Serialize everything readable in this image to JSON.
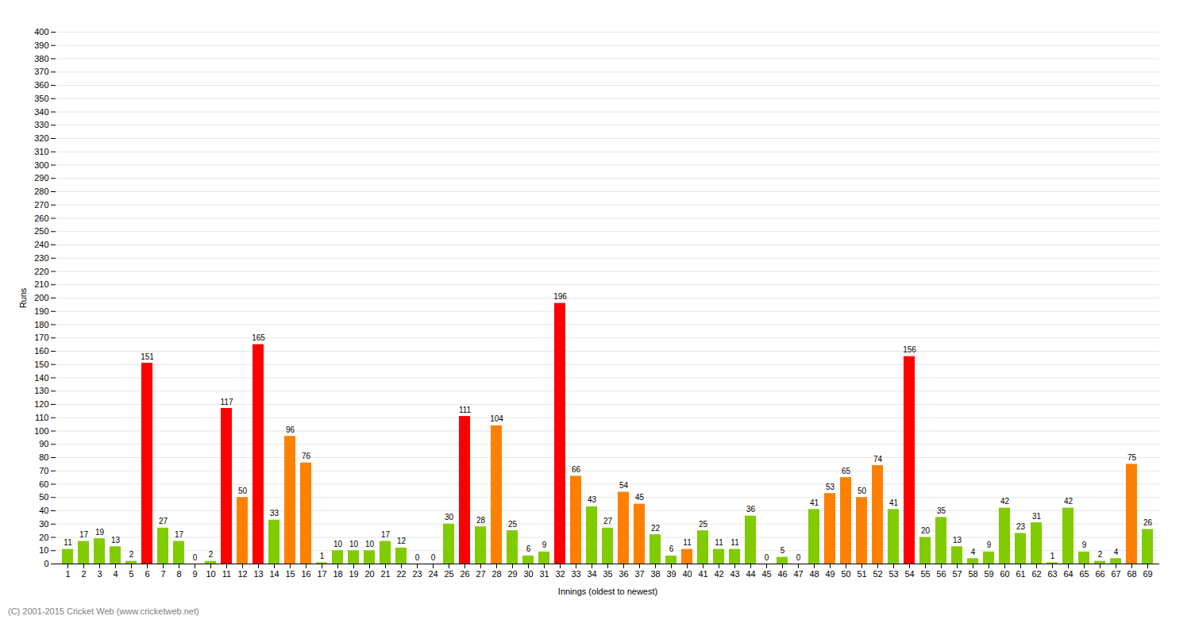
{
  "chart_data": {
    "type": "bar",
    "xlabel": "Innings (oldest to newest)",
    "ylabel": "Runs",
    "caption": "(C) 2001-2015 Cricket Web (www.cricketweb.net)",
    "categories": [
      1,
      2,
      3,
      4,
      5,
      6,
      7,
      8,
      9,
      10,
      11,
      12,
      13,
      14,
      15,
      16,
      17,
      18,
      19,
      20,
      21,
      22,
      23,
      24,
      25,
      26,
      27,
      28,
      29,
      30,
      31,
      32,
      33,
      34,
      35,
      36,
      37,
      38,
      39,
      40,
      41,
      42,
      43,
      44,
      45,
      46,
      47,
      48,
      49,
      50,
      51,
      52,
      53,
      54,
      55,
      56,
      57,
      58,
      59,
      60,
      61,
      62,
      63,
      64,
      65,
      66,
      67,
      68,
      69
    ],
    "values": [
      11,
      17,
      19,
      13,
      2,
      151,
      27,
      17,
      0,
      2,
      117,
      50,
      165,
      33,
      96,
      76,
      1,
      10,
      10,
      10,
      17,
      12,
      0,
      0,
      30,
      111,
      28,
      104,
      25,
      6,
      9,
      196,
      66,
      43,
      27,
      54,
      45,
      22,
      6,
      11,
      25,
      11,
      11,
      36,
      0,
      5,
      0,
      41,
      53,
      65,
      50,
      74,
      41,
      156,
      20,
      35,
      13,
      4,
      9,
      42,
      23,
      31,
      1,
      42,
      9,
      2,
      4,
      75,
      26
    ],
    "colors": [
      "#80cc00",
      "#80cc00",
      "#80cc00",
      "#80cc00",
      "#80cc00",
      "#ff0000",
      "#80cc00",
      "#80cc00",
      "#80cc00",
      "#80cc00",
      "#ff0000",
      "#ff8000",
      "#ff0000",
      "#80cc00",
      "#ff8000",
      "#ff8000",
      "#80cc00",
      "#80cc00",
      "#80cc00",
      "#80cc00",
      "#80cc00",
      "#80cc00",
      "#80cc00",
      "#80cc00",
      "#80cc00",
      "#ff0000",
      "#80cc00",
      "#ff8000",
      "#80cc00",
      "#80cc00",
      "#80cc00",
      "#ff0000",
      "#ff8000",
      "#80cc00",
      "#80cc00",
      "#ff8000",
      "#ff8000",
      "#80cc00",
      "#80cc00",
      "#ff8000",
      "#80cc00",
      "#80cc00",
      "#80cc00",
      "#80cc00",
      "#80cc00",
      "#80cc00",
      "#80cc00",
      "#80cc00",
      "#ff8000",
      "#ff8000",
      "#ff8000",
      "#ff8000",
      "#80cc00",
      "#ff0000",
      "#80cc00",
      "#80cc00",
      "#80cc00",
      "#80cc00",
      "#80cc00",
      "#80cc00",
      "#80cc00",
      "#80cc00",
      "#80cc00",
      "#80cc00",
      "#80cc00",
      "#80cc00",
      "#80cc00",
      "#ff8000",
      "#80cc00"
    ],
    "ylim": [
      0,
      400
    ],
    "yticks": [
      0,
      10,
      20,
      30,
      40,
      50,
      60,
      70,
      80,
      90,
      100,
      110,
      120,
      130,
      140,
      150,
      160,
      170,
      180,
      190,
      200,
      210,
      220,
      230,
      240,
      250,
      260,
      270,
      280,
      290,
      300,
      310,
      320,
      330,
      340,
      350,
      360,
      370,
      380,
      390,
      400
    ],
    "grid": true,
    "data_labels": true
  }
}
